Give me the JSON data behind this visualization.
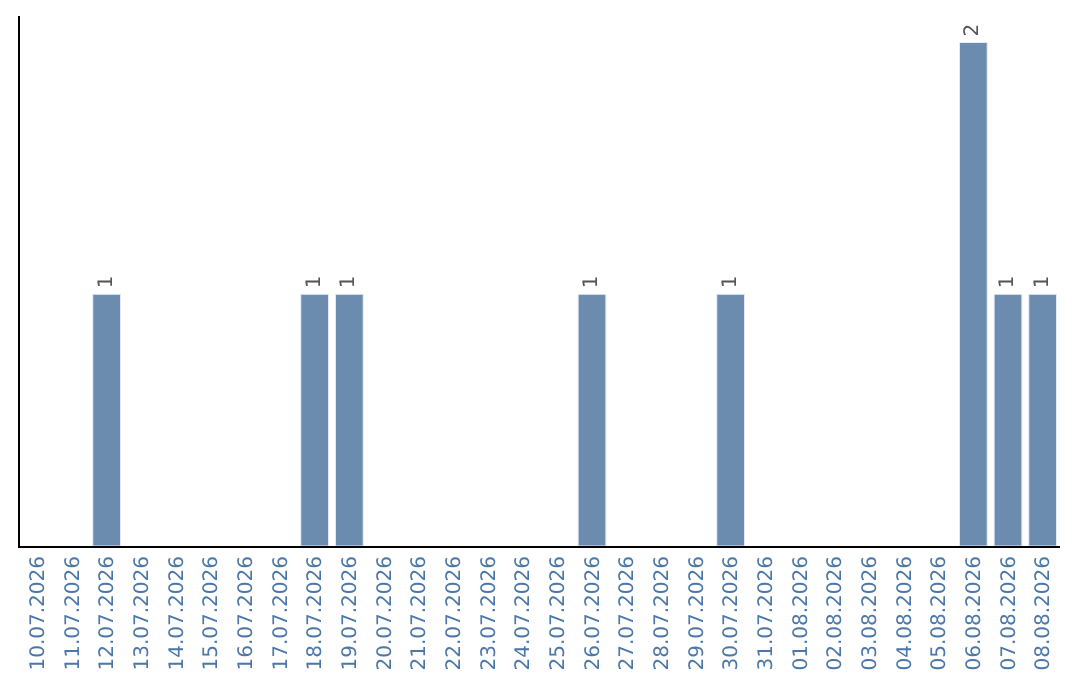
{
  "chart_data": {
    "type": "bar",
    "categories": [
      "10.07.2026",
      "11.07.2026",
      "12.07.2026",
      "13.07.2026",
      "14.07.2026",
      "15.07.2026",
      "16.07.2026",
      "17.07.2026",
      "18.07.2026",
      "19.07.2026",
      "20.07.2026",
      "21.07.2026",
      "22.07.2026",
      "23.07.2026",
      "24.07.2026",
      "25.07.2026",
      "26.07.2026",
      "27.07.2026",
      "28.07.2026",
      "29.07.2026",
      "30.07.2026",
      "31.07.2026",
      "01.08.2026",
      "02.08.2026",
      "03.08.2026",
      "04.08.2026",
      "05.08.2026",
      "06.08.2026",
      "07.08.2026",
      "08.08.2026"
    ],
    "values": [
      null,
      null,
      1,
      null,
      null,
      null,
      null,
      null,
      1,
      1,
      null,
      null,
      null,
      null,
      null,
      null,
      1,
      null,
      null,
      null,
      1,
      null,
      null,
      null,
      null,
      null,
      null,
      2,
      1,
      1
    ],
    "value_labels": [
      null,
      null,
      "1",
      null,
      null,
      null,
      null,
      null,
      "1",
      "1",
      null,
      null,
      null,
      null,
      null,
      null,
      "1",
      null,
      null,
      null,
      "1",
      null,
      null,
      null,
      null,
      null,
      null,
      "2",
      "1",
      "1"
    ],
    "color": "#6b8cae",
    "legend": false,
    "tick_labels": "x"
  }
}
